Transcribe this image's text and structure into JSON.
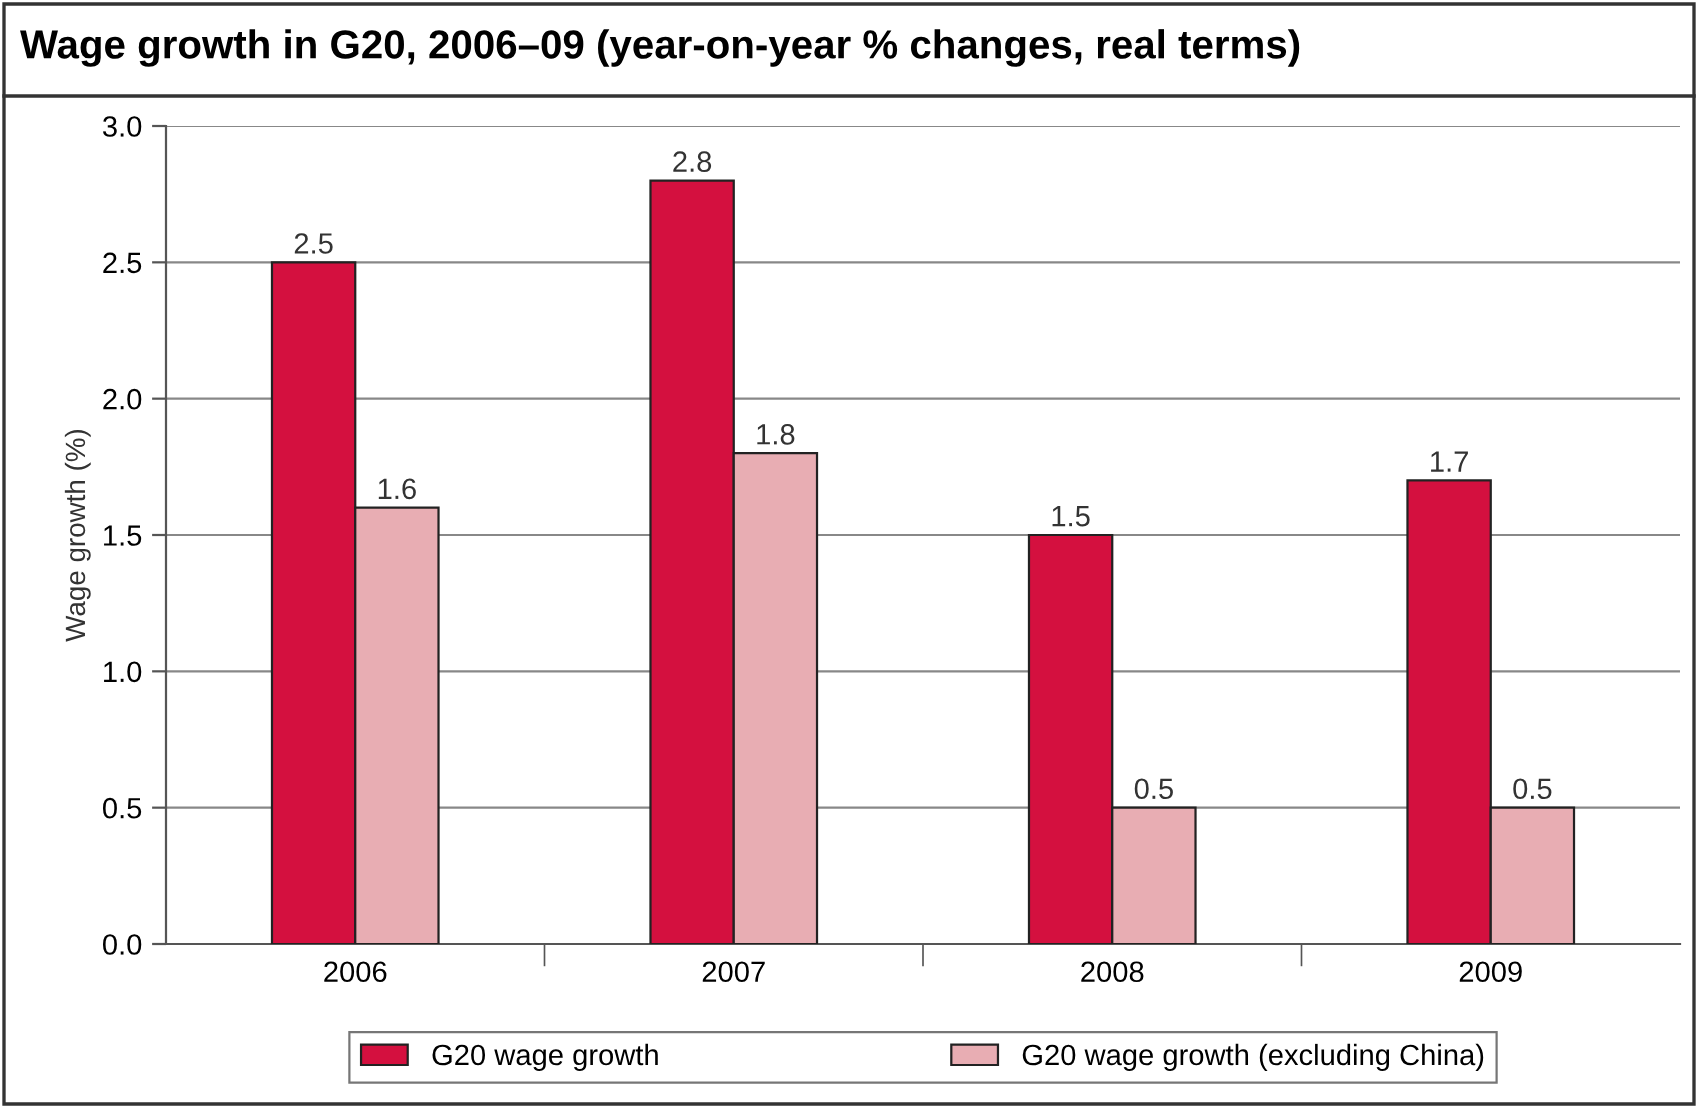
{
  "chart_data": {
    "type": "bar",
    "title": "Wage growth in G20, 2006–09 (year-on-year % changes, real terms)",
    "ylabel": "Wage growth (%)",
    "categories": [
      "2006",
      "2007",
      "2008",
      "2009"
    ],
    "series": [
      {
        "name": "G20 wage growth",
        "color": "#d4103f",
        "values": [
          2.5,
          2.8,
          1.5,
          1.7
        ]
      },
      {
        "name": "G20 wage growth (excluding China)",
        "color": "#e8adb3",
        "values": [
          1.6,
          1.8,
          0.5,
          0.5
        ]
      }
    ],
    "ylim": [
      0,
      3.0
    ],
    "yticks": [
      "0.0",
      "0.5",
      "1.0",
      "1.5",
      "2.0",
      "2.5",
      "3.0"
    ],
    "grid": "y",
    "legend": "bottom",
    "data_labels": true
  }
}
